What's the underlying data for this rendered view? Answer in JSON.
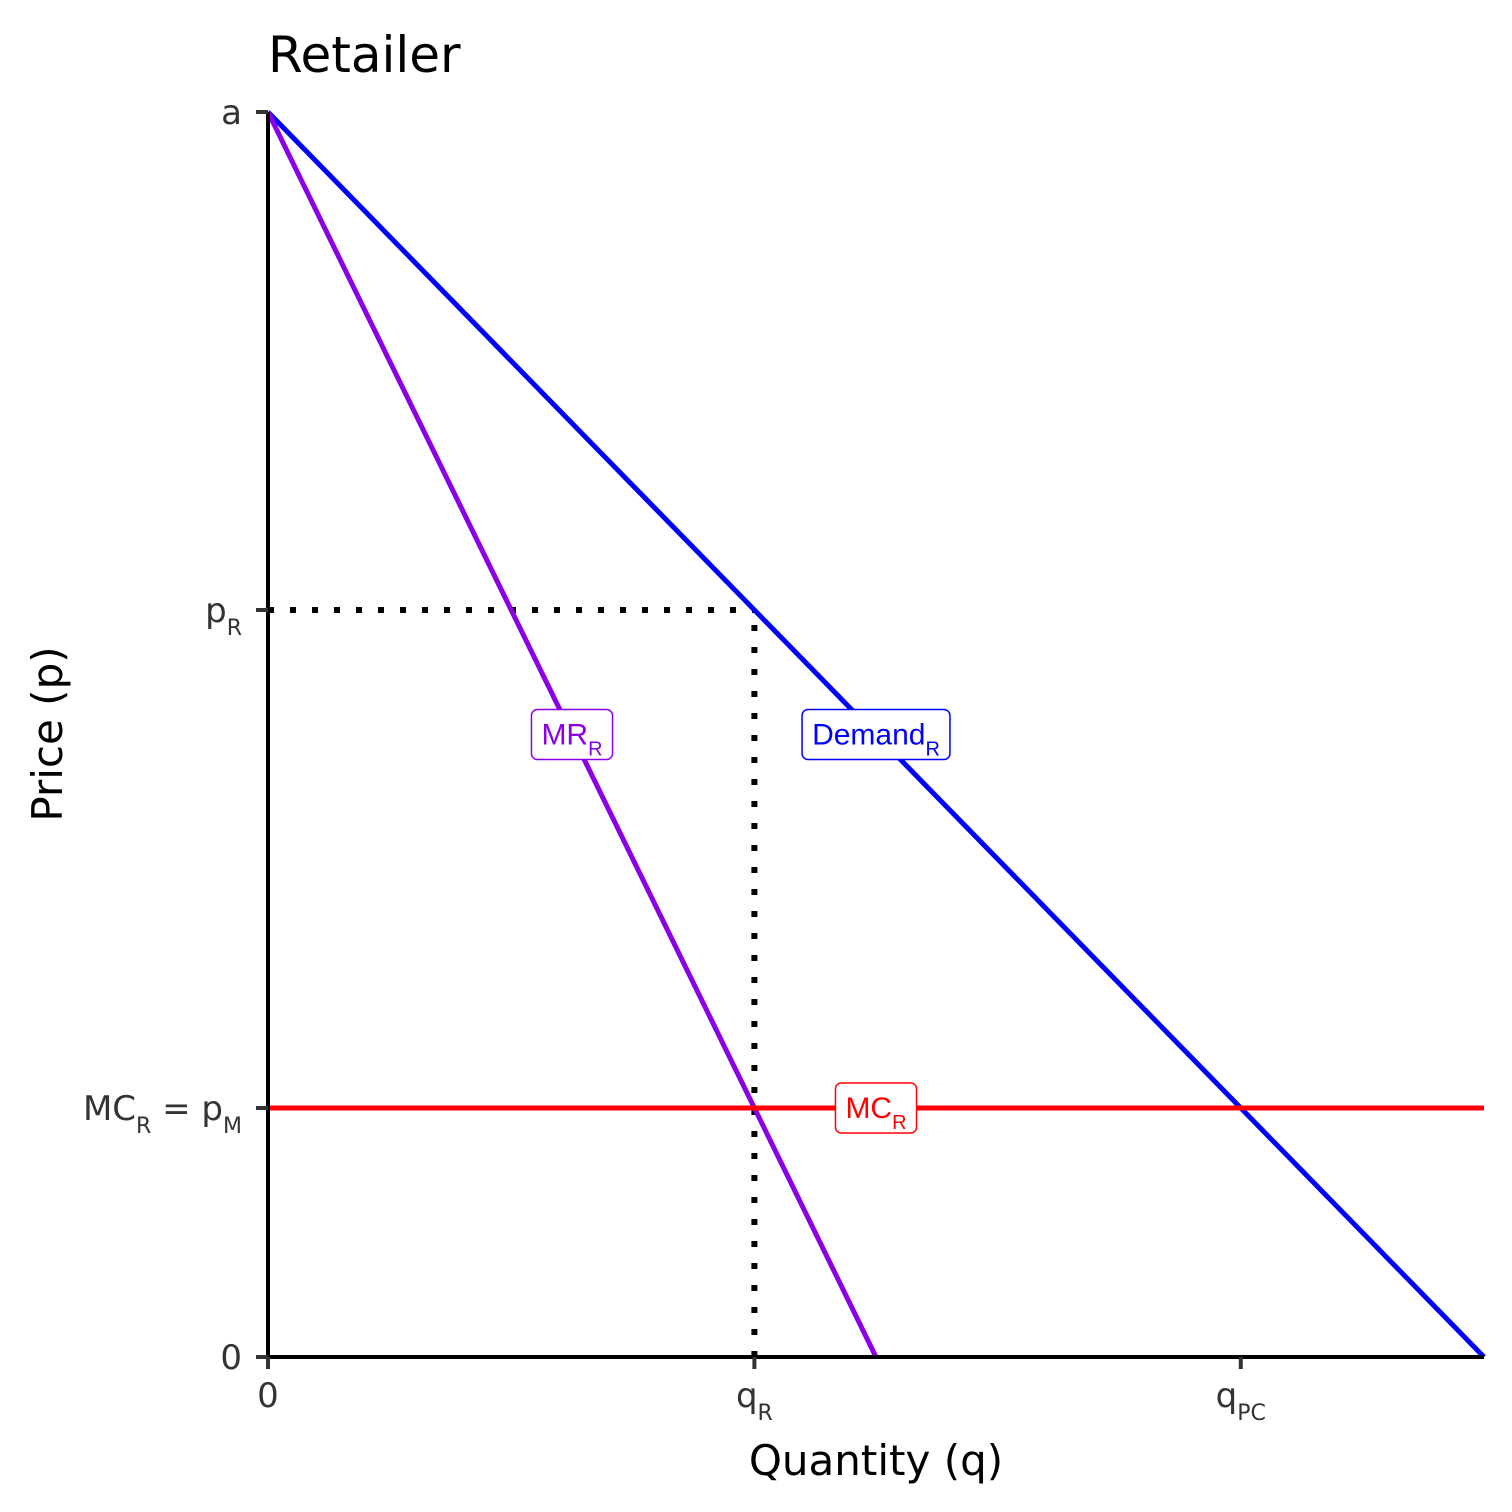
{
  "chart_data": {
    "type": "line",
    "title": "Retailer",
    "xlabel": "Quantity (q)",
    "ylabel": "Price (p)",
    "xlim": [
      0,
      100
    ],
    "ylim": [
      0,
      100
    ],
    "grid": false,
    "x_ticks": [
      {
        "value": 0,
        "text": "0",
        "sub": ""
      },
      {
        "value": 40,
        "text": "q",
        "sub": "R"
      },
      {
        "value": 80,
        "text": "q",
        "sub": "PC"
      }
    ],
    "y_ticks": [
      {
        "value": 0,
        "text": "0",
        "sub": "",
        "text2": "",
        "sub2": ""
      },
      {
        "value": 20,
        "text": "MC",
        "sub": "R",
        "text2": " = p",
        "sub2": "M"
      },
      {
        "value": 60,
        "text": "p",
        "sub": "R",
        "text2": "",
        "sub2": ""
      },
      {
        "value": 100,
        "text": "a",
        "sub": "",
        "text2": "",
        "sub2": ""
      }
    ],
    "series": [
      {
        "name": "Demand",
        "sub": "R",
        "color": "#0000ff",
        "x": [
          0,
          100
        ],
        "y": [
          100,
          0
        ],
        "label_at": [
          50,
          50
        ]
      },
      {
        "name": "MR",
        "sub": "R",
        "color": "#8b00e6",
        "x": [
          0,
          50
        ],
        "y": [
          100,
          0
        ],
        "label_at": [
          25,
          50
        ]
      },
      {
        "name": "MC",
        "sub": "R",
        "color": "#ff0000",
        "x": [
          0,
          100
        ],
        "y": [
          20,
          20
        ],
        "label_at": [
          50,
          20
        ]
      }
    ],
    "guides": [
      {
        "x": [
          0,
          40
        ],
        "y": [
          60,
          60
        ],
        "style": "dotted",
        "color": "#000000"
      },
      {
        "x": [
          40,
          40
        ],
        "y": [
          0,
          60
        ],
        "style": "dotted",
        "color": "#000000"
      }
    ]
  }
}
